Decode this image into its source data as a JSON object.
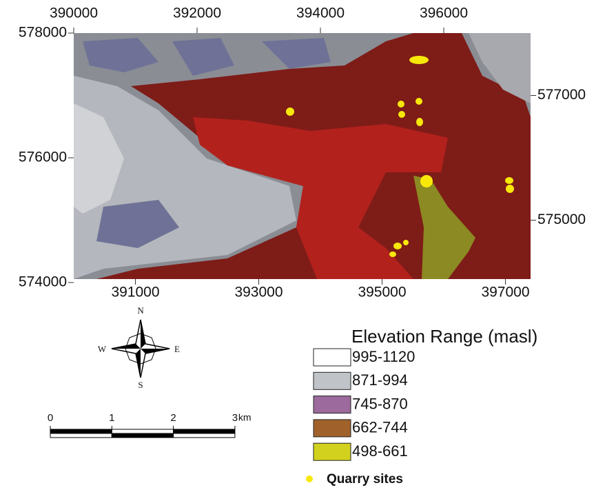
{
  "map": {
    "axes": {
      "top": [
        390000,
        392000,
        394000,
        396000
      ],
      "bottom": [
        391000,
        393000,
        395000,
        397000
      ],
      "left": [
        578000,
        576000,
        574000
      ],
      "right": [
        577000,
        575000
      ]
    },
    "compass": {
      "n": "N",
      "s": "S",
      "e": "E",
      "w": "W"
    },
    "scale_bar": {
      "ticks": [
        0,
        1,
        2,
        3
      ],
      "unit": "km"
    },
    "legend": {
      "title": "Elevation Range (masl)",
      "items": [
        {
          "label": "995-1120",
          "color": "#ffffff"
        },
        {
          "label": "871-994",
          "color": "#c0c3c8"
        },
        {
          "label": "745-870",
          "color": "#9c6a9c"
        },
        {
          "label": "662-744",
          "color": "#a0622a"
        },
        {
          "label": "498-661",
          "color": "#d2d21e"
        }
      ],
      "quarry": {
        "label": "Quarry sites",
        "color": "#f7e80a"
      }
    }
  }
}
